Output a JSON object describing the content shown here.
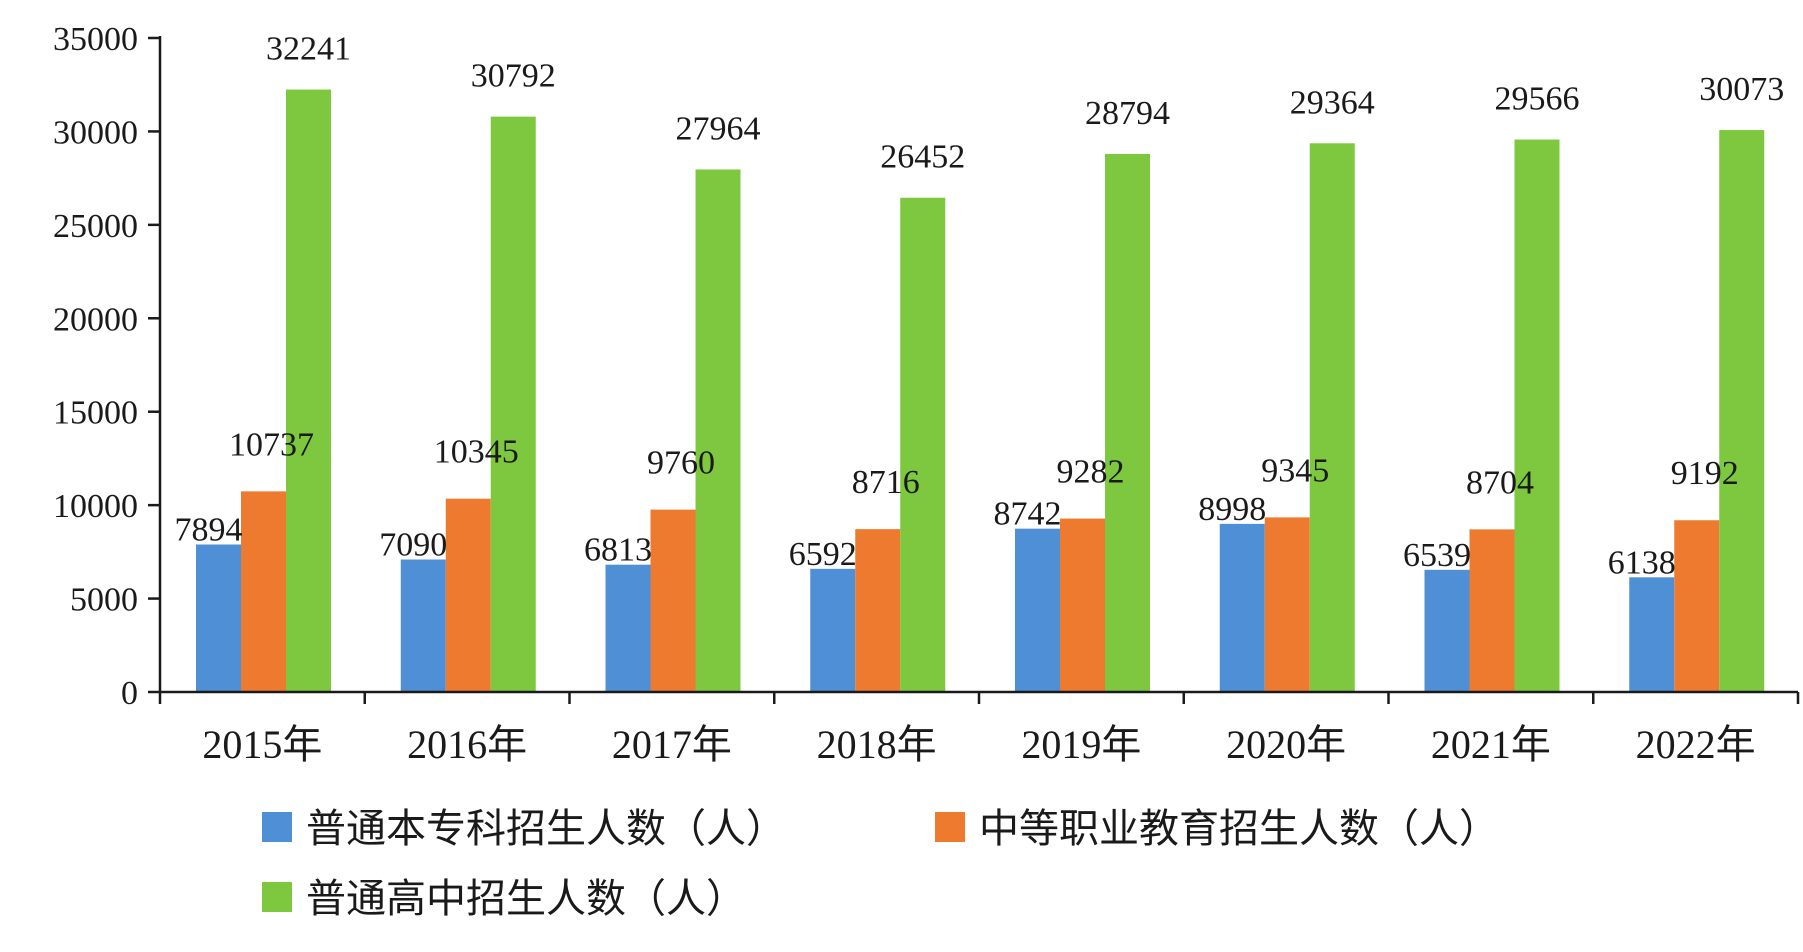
{
  "chart_data": {
    "type": "bar",
    "categories": [
      "2015年",
      "2016年",
      "2017年",
      "2018年",
      "2019年",
      "2020年",
      "2021年",
      "2022年"
    ],
    "series": [
      {
        "name": "普通本专科招生人数（人）",
        "color": "#4e8fd6",
        "values": [
          7894,
          7090,
          6813,
          6592,
          8742,
          8998,
          6539,
          6138
        ]
      },
      {
        "name": "中等职业教育招生人数（人）",
        "color": "#ee7a2f",
        "values": [
          10737,
          10345,
          9760,
          8716,
          9282,
          9345,
          8704,
          9192
        ]
      },
      {
        "name": "普通高中招生人数（人）",
        "color": "#7ec83f",
        "values": [
          32241,
          30792,
          27964,
          26452,
          28794,
          29364,
          29566,
          30073
        ]
      }
    ],
    "ylim": [
      0,
      35000
    ],
    "yticks": [
      0,
      5000,
      10000,
      15000,
      20000,
      25000,
      30000,
      35000
    ],
    "title": "",
    "xlabel": "",
    "ylabel": "",
    "grid": false,
    "legend_position": "bottom"
  }
}
